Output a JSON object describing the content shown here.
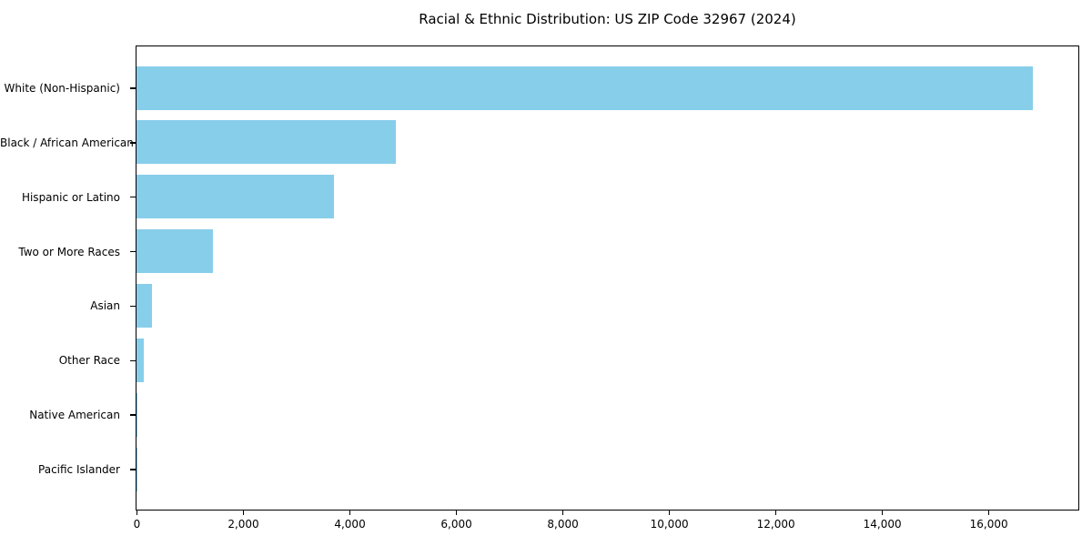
{
  "header": {
    "title": "Racial & Ethnic Distribution: US ZIP Code 32967 (2024)"
  },
  "colors": {
    "bar_fill": "#87CEEB",
    "axis": "#000000",
    "background": "#FFFFFF",
    "text": "#000000"
  },
  "chart_data": {
    "type": "bar",
    "orientation": "horizontal",
    "title": "Racial & Ethnic Distribution: US ZIP Code 32967 (2024)",
    "categories": [
      "White (Non-Hispanic)",
      "Black / African American",
      "Hispanic or Latino",
      "Two or More Races",
      "Asian",
      "Other Race",
      "Native American",
      "Pacific Islander"
    ],
    "values": [
      16830,
      4870,
      3710,
      1440,
      285,
      130,
      20,
      5
    ],
    "xlabel": "",
    "ylabel": "",
    "xlim": [
      0,
      17672
    ],
    "x_ticks": [
      0,
      2000,
      4000,
      6000,
      8000,
      10000,
      12000,
      14000,
      16000
    ],
    "x_tick_labels": [
      "0",
      "2,000",
      "4,000",
      "6,000",
      "8,000",
      "10,000",
      "12,000",
      "14,000",
      "16,000"
    ],
    "grid": false,
    "legend": "none",
    "bar_color": "#87CEEB"
  }
}
